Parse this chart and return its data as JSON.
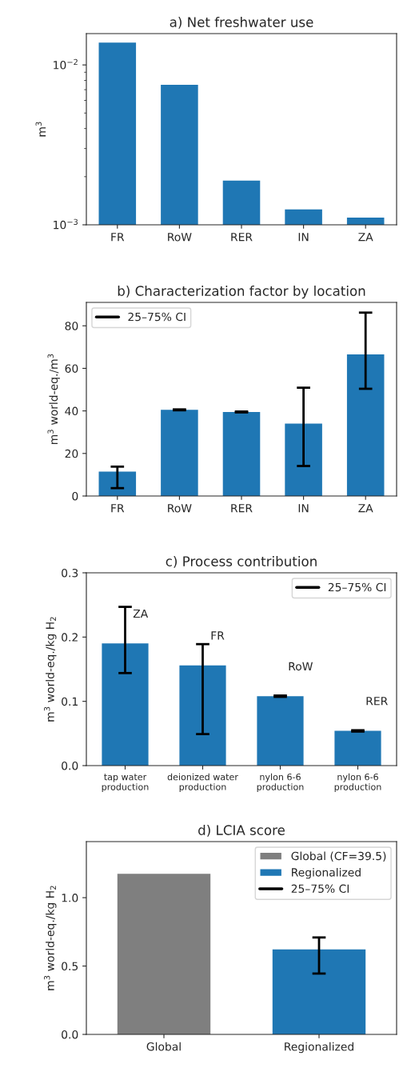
{
  "chart_data": [
    {
      "type": "bar",
      "title": "a) Net freshwater use",
      "ylabel": "m$^{3}$",
      "categories": [
        "FR",
        "RoW",
        "RER",
        "IN",
        "ZA"
      ],
      "log": "y",
      "ylim": [
        0.001,
        0.0157
      ],
      "yticks": [
        {
          "value": 0.01,
          "label": "10$^{−2}$"
        },
        {
          "value": 0.001,
          "label": "10$^{−3}$"
        }
      ],
      "grid": false,
      "legend": false,
      "series": [
        {
          "color": "#1f77b4",
          "values": [
            0.0138,
            0.0075,
            0.00189,
            0.00125,
            0.00111
          ]
        }
      ]
    },
    {
      "type": "bar",
      "title": "b) Characterization factor by location",
      "ylabel": "m$^{3}$ world-eq./m$^{3}$",
      "categories": [
        "FR",
        "RoW",
        "RER",
        "IN",
        "ZA"
      ],
      "ylim": [
        0,
        91
      ],
      "yticks": [
        0,
        20,
        40,
        60,
        80
      ],
      "grid": false,
      "legend": "top left",
      "series": [
        {
          "color": "#1f77b4",
          "values": [
            11.5,
            40.5,
            39.5,
            34.0,
            66.6
          ],
          "errors": [
            [
              3.7,
              13.8
            ],
            [
              40.3,
              40.7
            ],
            [
              39.3,
              39.7
            ],
            [
              14.1,
              50.9
            ],
            [
              50.4,
              86.2
            ]
          ]
        },
        {
          "type": "line",
          "name": "25–75% CI",
          "color": "#000000",
          "values": [
            null,
            null,
            null,
            null,
            null
          ]
        }
      ]
    },
    {
      "type": "bar",
      "title": "c) Process contribution",
      "ylabel": "m$^{3}$ world-eq./kg H$_{2}$",
      "categories": [
        "tap water\nproduction",
        "deionized water\nproduction",
        "nylon 6-6\nproduction",
        "nylon 6-6\nproduction"
      ],
      "ylim": [
        0,
        0.3
      ],
      "yticks": [
        {
          "value": 0,
          "label": "0.0"
        },
        0.1,
        0.2,
        0.3
      ],
      "grid": false,
      "legend": "top right",
      "series": [
        {
          "color": "#1f77b4",
          "values": [
            0.19,
            0.156,
            0.108,
            0.054
          ],
          "errors": [
            [
              0.144,
              0.247
            ],
            [
              0.049,
              0.189
            ],
            [
              0.107,
              0.109
            ],
            [
              0.053,
              0.055
            ]
          ]
        },
        {
          "type": "line",
          "name": "25–75% CI",
          "color": "#000000",
          "values": [
            null,
            null,
            null,
            null
          ]
        }
      ],
      "annotations": [
        "ZA",
        "FR",
        "RoW",
        "RER"
      ]
    },
    {
      "type": "bar",
      "title": "d) LCIA score",
      "ylabel": "m$^{3}$ world-eq./kg H$_{2}$",
      "categories": [
        "Global",
        "Regionalized"
      ],
      "ylim": [
        0,
        1.41
      ],
      "yticks": [
        {
          "value": 0,
          "label": "0.0"
        },
        0.5,
        {
          "value": 1,
          "label": "1.0"
        }
      ],
      "grid": false,
      "legend": "top right",
      "series": [
        {
          "name": "Global (CF=39.5)",
          "color": "#7f7f7f",
          "values": [
            1.175,
            null
          ]
        },
        {
          "name": "Regionalized",
          "color": "#1f77b4",
          "values": [
            null,
            0.621
          ],
          "errors": [
            null,
            [
              0.445,
              0.709
            ]
          ]
        },
        {
          "type": "line",
          "name": "25–75% CI",
          "color": "#000000",
          "values": [
            null,
            null
          ]
        }
      ]
    }
  ]
}
